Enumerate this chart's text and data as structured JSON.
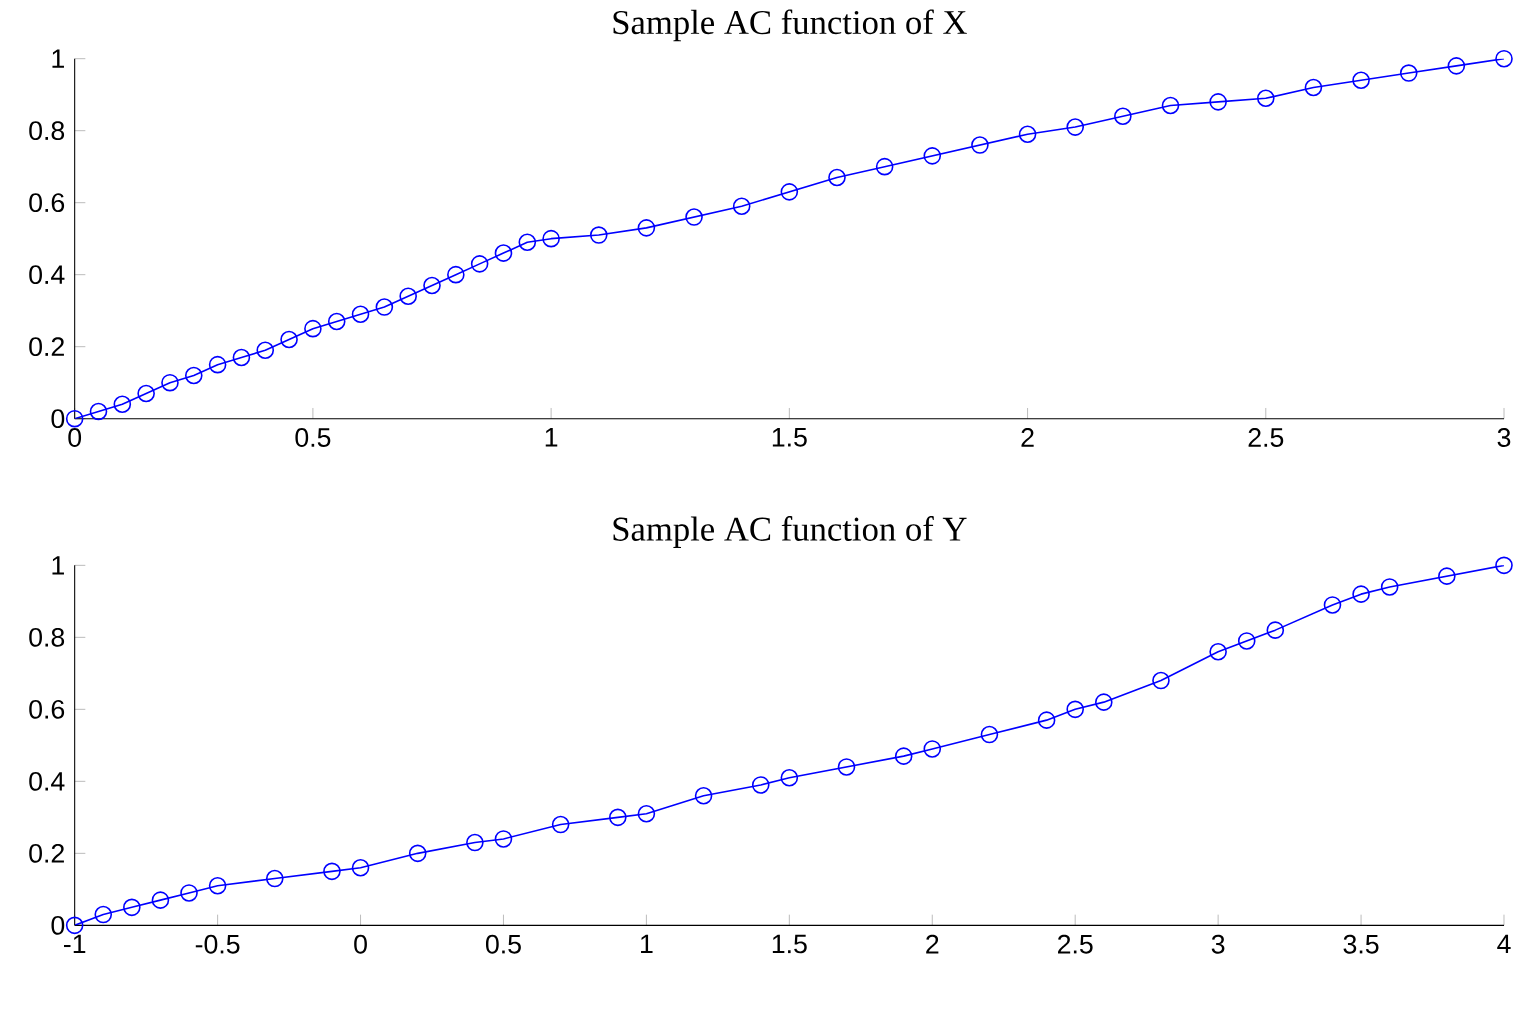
{
  "chart_data": [
    {
      "type": "line",
      "title": "Sample AC function of X",
      "marker": "circle",
      "line_style": "solid",
      "grid": false,
      "xlim": [
        0,
        3
      ],
      "ylim": [
        0,
        1
      ],
      "xticks": [
        0,
        0.5,
        1,
        1.5,
        2,
        2.5,
        3
      ],
      "yticks": [
        0,
        0.2,
        0.4,
        0.6,
        0.8,
        1
      ],
      "x": [
        0,
        0.05,
        0.1,
        0.15,
        0.2,
        0.25,
        0.3,
        0.35,
        0.4,
        0.45,
        0.5,
        0.55,
        0.6,
        0.65,
        0.7,
        0.75,
        0.8,
        0.85,
        0.9,
        0.95,
        1.0,
        1.1,
        1.2,
        1.3,
        1.4,
        1.5,
        1.6,
        1.7,
        1.8,
        1.9,
        2.0,
        2.1,
        2.2,
        2.3,
        2.4,
        2.5,
        2.6,
        2.7,
        2.8,
        2.9,
        3.0
      ],
      "series": [
        {
          "color": "#0000ff",
          "values": [
            0,
            0.02,
            0.04,
            0.07,
            0.1,
            0.12,
            0.15,
            0.17,
            0.19,
            0.22,
            0.25,
            0.27,
            0.29,
            0.31,
            0.34,
            0.37,
            0.4,
            0.43,
            0.46,
            0.49,
            0.5,
            0.51,
            0.53,
            0.56,
            0.59,
            0.63,
            0.67,
            0.7,
            0.73,
            0.76,
            0.79,
            0.81,
            0.84,
            0.87,
            0.88,
            0.89,
            0.92,
            0.94,
            0.96,
            0.98,
            1.0
          ]
        }
      ]
    },
    {
      "type": "line",
      "title": "Sample AC function of Y",
      "marker": "circle",
      "line_style": "solid",
      "grid": false,
      "xlim": [
        -1,
        4
      ],
      "ylim": [
        0,
        1
      ],
      "xticks": [
        -1,
        -0.5,
        0,
        0.5,
        1,
        1.5,
        2,
        2.5,
        3,
        3.5,
        4
      ],
      "yticks": [
        0,
        0.2,
        0.4,
        0.6,
        0.8,
        1
      ],
      "x": [
        -1,
        -0.9,
        -0.8,
        -0.7,
        -0.6,
        -0.5,
        -0.3,
        -0.1,
        0,
        0.2,
        0.4,
        0.5,
        0.7,
        0.9,
        1.0,
        1.2,
        1.4,
        1.5,
        1.7,
        1.9,
        2.0,
        2.2,
        2.4,
        2.5,
        2.6,
        2.8,
        3.0,
        3.1,
        3.2,
        3.4,
        3.5,
        3.6,
        3.8,
        4.0
      ],
      "series": [
        {
          "color": "#0000ff",
          "values": [
            0,
            0.03,
            0.05,
            0.07,
            0.09,
            0.11,
            0.13,
            0.15,
            0.16,
            0.2,
            0.23,
            0.24,
            0.28,
            0.3,
            0.31,
            0.36,
            0.39,
            0.41,
            0.44,
            0.47,
            0.49,
            0.53,
            0.57,
            0.6,
            0.62,
            0.68,
            0.76,
            0.79,
            0.82,
            0.89,
            0.92,
            0.94,
            0.97,
            1.0
          ]
        }
      ]
    }
  ]
}
